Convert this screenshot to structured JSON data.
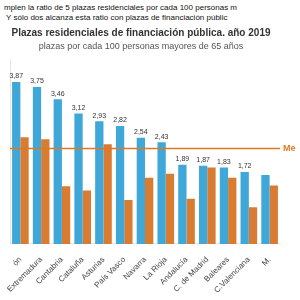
{
  "chart_data": {
    "type": "bar",
    "header": [
      "mplen la ratio de 5 plazas residenciales por cada 100 personas m",
      " Y sólo dos alcanza esta ratio con plazas de financiación públic"
    ],
    "title": "Plazas residenciales de financiación pública. año 2019",
    "subtitle": "plazas por cada 100 personas mayores de 65 años",
    "categories": [
      "ón",
      "Extremadura",
      "Cantabria",
      "Cataluña",
      "Asturias",
      "País Vasco",
      "Navarra",
      "La Rioja",
      "Andalucía",
      "C. de Madrid",
      "Baleares",
      "C.Valenciana",
      "M."
    ],
    "series": [
      {
        "color": "#3fa8d9",
        "values": [
          3.87,
          3.75,
          3.46,
          3.12,
          2.93,
          2.82,
          2.54,
          2.43,
          1.89,
          1.87,
          1.83,
          1.72,
          1.65
        ],
        "data_labels": true,
        "value_labels": [
          "3,87",
          "3,75",
          "3,46",
          "3,12",
          "2,93",
          "2,82",
          "2,54",
          "2,43",
          "1,89",
          "1,87",
          "1,83",
          "1,72",
          null
        ]
      },
      {
        "color": "#d97b30",
        "values": [
          2.55,
          2.5,
          1.38,
          1.28,
          2.38,
          1.05,
          1.58,
          1.68,
          1.08,
          1.83,
          1.58,
          0.88,
          1.4
        ]
      }
    ],
    "annotations": [
      {
        "type": "hline",
        "y": 2.28,
        "label": "Me",
        "color": "#e07820"
      }
    ],
    "ylim": [
      0,
      4.4
    ],
    "grid": false,
    "tick_labels": "x"
  }
}
